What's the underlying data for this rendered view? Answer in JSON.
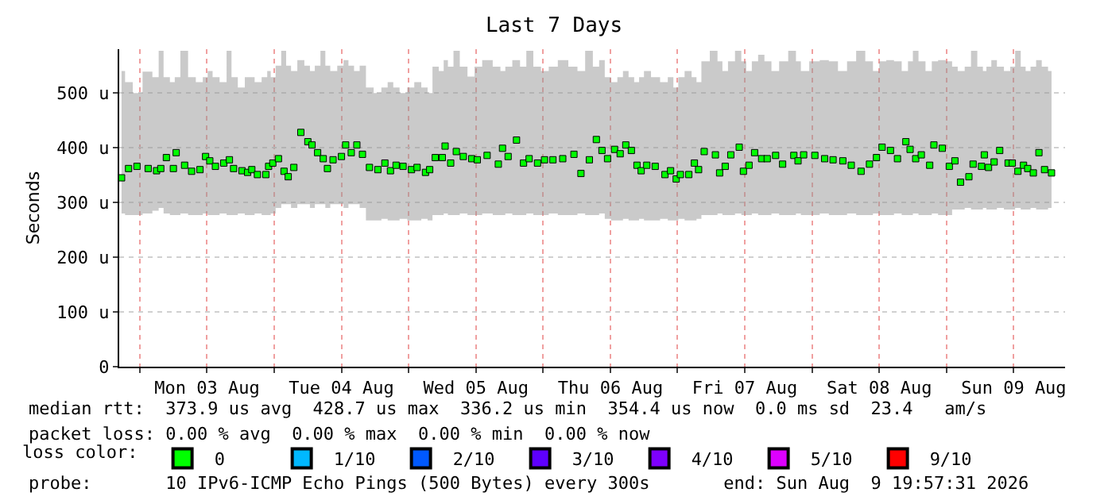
{
  "chart_data": {
    "type": "scatter",
    "title": "Last 7 Days",
    "ylabel": "Seconds",
    "x": [
      "2026-08-02T20:45",
      "2026-08-02T22:00",
      "2026-08-02T23:30",
      "2026-08-03T01:30",
      "2026-08-03T03:00",
      "2026-08-03T03:45",
      "2026-08-03T04:45",
      "2026-08-03T06:00",
      "2026-08-03T06:30",
      "2026-08-03T08:00",
      "2026-08-03T09:15",
      "2026-08-03T10:45",
      "2026-08-03T11:45",
      "2026-08-03T12:30",
      "2026-08-03T13:30",
      "2026-08-03T15:00",
      "2026-08-03T16:00",
      "2026-08-03T16:45",
      "2026-08-03T18:15",
      "2026-08-03T19:15",
      "2026-08-03T20:00",
      "2026-08-03T21:00",
      "2026-08-03T22:30",
      "2026-08-03T23:00",
      "2026-08-03T23:45",
      "2026-08-04T00:45",
      "2026-08-04T01:45",
      "2026-08-04T02:30",
      "2026-08-04T03:30",
      "2026-08-04T04:45",
      "2026-08-04T06:00",
      "2026-08-04T06:45",
      "2026-08-04T07:45",
      "2026-08-04T08:45",
      "2026-08-04T09:30",
      "2026-08-04T10:30",
      "2026-08-04T12:00",
      "2026-08-04T12:45",
      "2026-08-04T13:45",
      "2026-08-04T14:45",
      "2026-08-04T15:45",
      "2026-08-04T17:00",
      "2026-08-04T18:30",
      "2026-08-04T19:45",
      "2026-08-04T20:45",
      "2026-08-04T21:45",
      "2026-08-04T23:00",
      "2026-08-05T00:30",
      "2026-08-05T01:30",
      "2026-08-05T03:00",
      "2026-08-05T03:45",
      "2026-08-05T04:45",
      "2026-08-05T06:00",
      "2026-08-05T06:30",
      "2026-08-05T07:30",
      "2026-08-05T08:30",
      "2026-08-05T09:45",
      "2026-08-05T11:15",
      "2026-08-05T12:15",
      "2026-08-05T14:00",
      "2026-08-05T16:00",
      "2026-08-05T16:45",
      "2026-08-05T17:45",
      "2026-08-05T19:15",
      "2026-08-05T20:30",
      "2026-08-05T21:30",
      "2026-08-05T23:00",
      "2026-08-06T00:15",
      "2026-08-06T01:45",
      "2026-08-06T03:30",
      "2026-08-06T05:30",
      "2026-08-06T06:45",
      "2026-08-06T08:15",
      "2026-08-06T09:30",
      "2026-08-06T10:30",
      "2026-08-06T11:30",
      "2026-08-06T12:45",
      "2026-08-06T13:45",
      "2026-08-06T14:45",
      "2026-08-06T15:45",
      "2026-08-06T16:45",
      "2026-08-06T17:30",
      "2026-08-06T18:30",
      "2026-08-06T20:00",
      "2026-08-06T21:45",
      "2026-08-06T22:45",
      "2026-08-06T23:45",
      "2026-08-07T00:30",
      "2026-08-07T02:00",
      "2026-08-07T03:00",
      "2026-08-07T03:45",
      "2026-08-07T04:45",
      "2026-08-07T06:45",
      "2026-08-07T07:30",
      "2026-08-07T08:30",
      "2026-08-07T09:30",
      "2026-08-07T11:00",
      "2026-08-07T11:45",
      "2026-08-07T12:45",
      "2026-08-07T13:45",
      "2026-08-07T15:00",
      "2026-08-07T16:00",
      "2026-08-07T17:30",
      "2026-08-07T18:45",
      "2026-08-07T20:45",
      "2026-08-07T21:30",
      "2026-08-07T22:30",
      "2026-08-08T00:30",
      "2026-08-08T02:15",
      "2026-08-08T03:45",
      "2026-08-08T05:30",
      "2026-08-08T07:00",
      "2026-08-08T08:45",
      "2026-08-08T10:15",
      "2026-08-08T11:30",
      "2026-08-08T12:30",
      "2026-08-08T14:00",
      "2026-08-08T15:15",
      "2026-08-08T16:45",
      "2026-08-08T17:30",
      "2026-08-08T18:30",
      "2026-08-08T19:30",
      "2026-08-08T21:00",
      "2026-08-08T21:45",
      "2026-08-08T23:15",
      "2026-08-09T00:30",
      "2026-08-09T01:30",
      "2026-08-09T02:30",
      "2026-08-09T04:00",
      "2026-08-09T04:45",
      "2026-08-09T06:15",
      "2026-08-09T06:45",
      "2026-08-09T07:30",
      "2026-08-09T08:30",
      "2026-08-09T09:30",
      "2026-08-09T11:00",
      "2026-08-09T11:45",
      "2026-08-09T12:45",
      "2026-08-09T13:45",
      "2026-08-09T14:30",
      "2026-08-09T15:30",
      "2026-08-09T16:30",
      "2026-08-09T17:30",
      "2026-08-09T18:45"
    ],
    "series": [
      {
        "name": "0",
        "color": "#00ff00",
        "values": [
          345,
          362,
          366,
          362,
          358,
          362,
          382,
          362,
          391,
          368,
          357,
          360,
          384,
          376,
          366,
          372,
          378,
          362,
          358,
          355,
          360,
          351,
          351,
          366,
          372,
          380,
          357,
          347,
          364,
          428,
          411,
          405,
          391,
          380,
          362,
          378,
          384,
          405,
          391,
          405,
          388,
          364,
          360,
          372,
          358,
          368,
          366,
          360,
          364,
          355,
          360,
          382,
          382,
          403,
          372,
          393,
          384,
          380,
          378,
          386,
          370,
          399,
          384,
          414,
          372,
          380,
          372,
          378,
          378,
          380,
          388,
          353,
          378,
          415,
          395,
          380,
          397,
          389,
          405,
          395,
          368,
          358,
          368,
          366,
          351,
          358,
          343,
          351,
          351,
          372,
          360,
          393,
          387,
          354,
          366,
          387,
          401,
          357,
          368,
          391,
          380,
          380,
          386,
          370,
          386,
          376,
          387,
          386,
          380,
          378,
          376,
          368,
          357,
          370,
          382,
          401,
          395,
          380,
          411,
          397,
          380,
          387,
          368,
          405,
          399,
          366,
          376,
          337,
          347,
          370,
          366,
          387,
          364,
          374,
          395,
          372,
          372,
          357,
          368,
          362,
          354,
          391,
          360,
          354
        ],
        "lower": [
          280,
          277,
          277,
          280,
          285,
          290,
          280,
          277,
          277,
          280,
          277,
          277,
          280,
          277,
          277,
          280,
          277,
          277,
          280,
          277,
          277,
          280,
          277,
          277,
          280,
          290,
          297,
          297,
          290,
          297,
          297,
          290,
          297,
          297,
          290,
          297,
          297,
          290,
          297,
          297,
          290,
          267,
          267,
          270,
          267,
          267,
          270,
          267,
          267,
          270,
          267,
          277,
          277,
          280,
          277,
          277,
          280,
          277,
          277,
          280,
          277,
          277,
          280,
          277,
          277,
          280,
          277,
          277,
          280,
          277,
          277,
          280,
          277,
          277,
          280,
          270,
          267,
          267,
          270,
          267,
          267,
          270,
          267,
          267,
          270,
          267,
          267,
          270,
          267,
          267,
          270,
          277,
          277,
          280,
          277,
          277,
          280,
          277,
          277,
          280,
          277,
          277,
          280,
          277,
          277,
          280,
          277,
          277,
          280,
          277,
          277,
          280,
          277,
          277,
          280,
          277,
          277,
          280,
          277,
          277,
          280,
          277,
          277,
          280,
          277,
          277,
          287,
          287,
          290,
          287,
          287,
          290,
          287,
          287,
          290,
          287,
          287,
          290,
          287,
          287,
          290,
          287,
          287,
          290
        ],
        "upper": [
          540,
          520,
          500,
          539,
          529,
          577,
          529,
          520,
          529,
          577,
          529,
          520,
          529,
          540,
          529,
          520,
          577,
          529,
          510,
          529,
          529,
          520,
          529,
          540,
          529,
          550,
          577,
          550,
          540,
          560,
          550,
          540,
          550,
          577,
          550,
          540,
          550,
          560,
          550,
          540,
          550,
          510,
          500,
          510,
          520,
          510,
          500,
          510,
          520,
          510,
          500,
          548,
          540,
          560,
          548,
          577,
          548,
          530,
          548,
          560,
          548,
          540,
          548,
          560,
          548,
          577,
          548,
          540,
          548,
          560,
          548,
          540,
          577,
          548,
          560,
          529,
          520,
          529,
          540,
          529,
          520,
          529,
          540,
          529,
          520,
          529,
          510,
          529,
          540,
          529,
          520,
          558,
          577,
          558,
          540,
          558,
          577,
          558,
          540,
          558,
          570,
          558,
          540,
          558,
          577,
          558,
          540,
          558,
          560,
          558,
          540,
          558,
          577,
          558,
          540,
          558,
          560,
          558,
          540,
          558,
          577,
          558,
          540,
          558,
          560,
          558,
          548,
          540,
          548,
          577,
          548,
          540,
          548,
          560,
          548,
          540,
          548,
          577,
          548,
          540,
          548,
          560,
          548,
          540
        ]
      },
      {
        "name": "1/10",
        "color": "#00b8ff",
        "values": [
          null,
          null,
          null,
          null,
          null,
          null,
          null,
          null,
          null,
          null,
          null,
          null,
          null,
          null,
          null,
          null,
          null,
          null,
          null,
          null,
          null,
          null,
          null,
          null,
          null,
          null,
          null,
          null,
          null,
          null,
          null,
          null,
          null,
          null,
          null,
          null,
          null,
          null,
          null,
          null,
          null,
          null,
          null,
          null,
          null,
          null,
          null,
          null,
          null,
          null,
          null,
          null,
          null,
          null,
          null,
          null,
          null,
          null,
          null,
          null,
          null,
          null,
          null,
          null,
          null,
          null,
          null,
          null,
          null,
          null,
          null,
          null,
          null,
          null,
          null,
          null,
          null,
          null,
          null,
          null,
          null,
          null,
          null,
          null,
          null,
          null,
          null,
          null,
          null,
          null,
          null,
          null,
          null,
          null,
          null,
          null,
          null,
          null,
          null,
          null,
          null,
          null,
          null,
          null,
          null,
          null,
          null,
          null,
          null,
          null,
          null,
          null,
          null,
          null,
          null,
          null,
          null,
          null,
          null,
          null,
          null,
          null,
          null,
          null,
          null,
          null,
          null,
          null,
          null,
          null,
          null,
          null,
          null,
          null,
          null,
          null,
          null,
          null,
          null,
          null,
          null,
          null,
          null,
          null
        ]
      },
      {
        "name": "2/10",
        "color": "#0059ff",
        "values": [
          null,
          null,
          null,
          null,
          null,
          null,
          null,
          null,
          null,
          null,
          null,
          null,
          null,
          null,
          null,
          null,
          null,
          null,
          null,
          null,
          null,
          null,
          null,
          null,
          null,
          null,
          null,
          null,
          null,
          null,
          null,
          null,
          null,
          null,
          null,
          null,
          null,
          null,
          null,
          null,
          null,
          null,
          null,
          null,
          null,
          null,
          null,
          null,
          null,
          null,
          null,
          null,
          null,
          null,
          null,
          null,
          null,
          null,
          null,
          null,
          null,
          null,
          null,
          null,
          null,
          null,
          null,
          null,
          null,
          null,
          null,
          null,
          null,
          null,
          null,
          null,
          null,
          null,
          null,
          null,
          null,
          null,
          null,
          null,
          null,
          null,
          null,
          null,
          null,
          null,
          null,
          null,
          null,
          null,
          null,
          null,
          null,
          null,
          null,
          null,
          null,
          null,
          null,
          null,
          null,
          null,
          null,
          null,
          null,
          null,
          null,
          null,
          null,
          null,
          null,
          null,
          null,
          null,
          null,
          null,
          null,
          null,
          null,
          null,
          null,
          null,
          null,
          null,
          null,
          null,
          null,
          null,
          null,
          null,
          null,
          null,
          null,
          null,
          null,
          null,
          null,
          null,
          null,
          null
        ]
      },
      {
        "name": "3/10",
        "color": "#5e00ff",
        "values": [
          null,
          null,
          null,
          null,
          null,
          null,
          null,
          null,
          null,
          null,
          null,
          null,
          null,
          null,
          null,
          null,
          null,
          null,
          null,
          null,
          null,
          null,
          null,
          null,
          null,
          null,
          null,
          null,
          null,
          null,
          null,
          null,
          null,
          null,
          null,
          null,
          null,
          null,
          null,
          null,
          null,
          null,
          null,
          null,
          null,
          null,
          null,
          null,
          null,
          null,
          null,
          null,
          null,
          null,
          null,
          null,
          null,
          null,
          null,
          null,
          null,
          null,
          null,
          null,
          null,
          null,
          null,
          null,
          null,
          null,
          null,
          null,
          null,
          null,
          null,
          null,
          null,
          null,
          null,
          null,
          null,
          null,
          null,
          null,
          null,
          null,
          null,
          null,
          null,
          null,
          null,
          null,
          null,
          null,
          null,
          null,
          null,
          null,
          null,
          null,
          null,
          null,
          null,
          null,
          null,
          null,
          null,
          null,
          null,
          null,
          null,
          null,
          null,
          null,
          null,
          null,
          null,
          null,
          null,
          null,
          null,
          null,
          null,
          null,
          null,
          null,
          null,
          null,
          null,
          null,
          null,
          null,
          null,
          null,
          null,
          null,
          null,
          null,
          null,
          null,
          null,
          null,
          null,
          null
        ]
      },
      {
        "name": "4/10",
        "color": "#7e00ff",
        "values": [
          null,
          null,
          null,
          null,
          null,
          null,
          null,
          null,
          null,
          null,
          null,
          null,
          null,
          null,
          null,
          null,
          null,
          null,
          null,
          null,
          null,
          null,
          null,
          null,
          null,
          null,
          null,
          null,
          null,
          null,
          null,
          null,
          null,
          null,
          null,
          null,
          null,
          null,
          null,
          null,
          null,
          null,
          null,
          null,
          null,
          null,
          null,
          null,
          null,
          null,
          null,
          null,
          null,
          null,
          null,
          null,
          null,
          null,
          null,
          null,
          null,
          null,
          null,
          null,
          null,
          null,
          null,
          null,
          null,
          null,
          null,
          null,
          null,
          null,
          null,
          null,
          null,
          null,
          null,
          null,
          null,
          null,
          null,
          null,
          null,
          null,
          null,
          null,
          null,
          null,
          null,
          null,
          null,
          null,
          null,
          null,
          null,
          null,
          null,
          null,
          null,
          null,
          null,
          null,
          null,
          null,
          null,
          null,
          null,
          null,
          null,
          null,
          null,
          null,
          null,
          null,
          null,
          null,
          null,
          null,
          null,
          null,
          null,
          null,
          null,
          null,
          null,
          null,
          null,
          null,
          null,
          null,
          null,
          null,
          null,
          null,
          null,
          null,
          null,
          null,
          null,
          null,
          null,
          null
        ]
      },
      {
        "name": "5/10",
        "color": "#dd00ff",
        "values": [
          null,
          null,
          null,
          null,
          null,
          null,
          null,
          null,
          null,
          null,
          null,
          null,
          null,
          null,
          null,
          null,
          null,
          null,
          null,
          null,
          null,
          null,
          null,
          null,
          null,
          null,
          null,
          null,
          null,
          null,
          null,
          null,
          null,
          null,
          null,
          null,
          null,
          null,
          null,
          null,
          null,
          null,
          null,
          null,
          null,
          null,
          null,
          null,
          null,
          null,
          null,
          null,
          null,
          null,
          null,
          null,
          null,
          null,
          null,
          null,
          null,
          null,
          null,
          null,
          null,
          null,
          null,
          null,
          null,
          null,
          null,
          null,
          null,
          null,
          null,
          null,
          null,
          null,
          null,
          null,
          null,
          null,
          null,
          null,
          null,
          null,
          null,
          null,
          null,
          null,
          null,
          null,
          null,
          null,
          null,
          null,
          null,
          null,
          null,
          null,
          null,
          null,
          null,
          null,
          null,
          null,
          null,
          null,
          null,
          null,
          null,
          null,
          null,
          null,
          null,
          null,
          null,
          null,
          null,
          null,
          null,
          null,
          null,
          null,
          null,
          null,
          null,
          null,
          null,
          null,
          null,
          null,
          null,
          null,
          null,
          null,
          null,
          null,
          null,
          null,
          null,
          null,
          null,
          null
        ]
      },
      {
        "name": "9/10",
        "color": "#ff0000",
        "values": [
          null,
          null,
          null,
          null,
          null,
          null,
          null,
          null,
          null,
          null,
          null,
          null,
          null,
          null,
          null,
          null,
          null,
          null,
          null,
          null,
          null,
          null,
          null,
          null,
          null,
          null,
          null,
          null,
          null,
          null,
          null,
          null,
          null,
          null,
          null,
          null,
          null,
          null,
          null,
          null,
          null,
          null,
          null,
          null,
          null,
          null,
          null,
          null,
          null,
          null,
          null,
          null,
          null,
          null,
          null,
          null,
          null,
          null,
          null,
          null,
          null,
          null,
          null,
          null,
          null,
          null,
          null,
          null,
          null,
          null,
          null,
          null,
          null,
          null,
          null,
          null,
          null,
          null,
          null,
          null,
          null,
          null,
          null,
          null,
          null,
          null,
          null,
          null,
          null,
          null,
          null,
          null,
          null,
          null,
          null,
          null,
          null,
          null,
          null,
          null,
          null,
          null,
          null,
          null,
          null,
          null,
          null,
          null,
          null,
          null,
          null,
          null,
          null,
          null,
          null,
          null,
          null,
          null,
          null,
          null,
          null,
          null,
          null,
          null,
          null,
          null,
          null,
          null,
          null,
          null,
          null,
          null,
          null,
          null,
          null,
          null,
          null,
          null,
          null,
          null,
          null,
          null,
          null,
          null
        ]
      }
    ],
    "legend_title": "loss color:",
    "legend": "bottom",
    "marker": "square",
    "grid": true,
    "xlim": [
      "2026-08-02T20:20",
      "2026-08-09T21:10"
    ],
    "xticks": [
      {
        "value": "2026-08-03T00:00",
        "label": null
      },
      {
        "value": "2026-08-03T12:00",
        "label": "Mon 03 Aug"
      },
      {
        "value": "2026-08-04T00:00",
        "label": null
      },
      {
        "value": "2026-08-04T12:00",
        "label": "Tue 04 Aug"
      },
      {
        "value": "2026-08-05T00:00",
        "label": null
      },
      {
        "value": "2026-08-05T12:00",
        "label": "Wed 05 Aug"
      },
      {
        "value": "2026-08-06T00:00",
        "label": null
      },
      {
        "value": "2026-08-06T12:00",
        "label": "Thu 06 Aug"
      },
      {
        "value": "2026-08-07T00:00",
        "label": null
      },
      {
        "value": "2026-08-07T12:00",
        "label": "Fri 07 Aug"
      },
      {
        "value": "2026-08-08T00:00",
        "label": null
      },
      {
        "value": "2026-08-08T12:00",
        "label": "Sat 08 Aug"
      },
      {
        "value": "2026-08-09T00:00",
        "label": null
      },
      {
        "value": "2026-08-09T12:00",
        "label": "Sun 09 Aug"
      }
    ],
    "ylim": [
      0,
      580
    ],
    "yticks": [
      0,
      {
        "value": 100,
        "label": "100 u"
      },
      {
        "value": 200,
        "label": "200 u"
      },
      {
        "value": 300,
        "label": "300 u"
      },
      {
        "value": 400,
        "label": "400 u"
      },
      {
        "value": 500,
        "label": "500 u"
      }
    ],
    "annotations": [
      "median rtt:  373.9 us avg  428.7 us max  336.2 us min  354.4 us now  0.0 ms sd  23.4   am/s",
      "packet loss: 0.00 % avg  0.00 % max  0.00 % min  0.00 % now",
      "probe:       10 IPv6-ICMP Echo Pings (500 Bytes) every 300s       end: Sun Aug  9 19:57:31 2026"
    ]
  }
}
